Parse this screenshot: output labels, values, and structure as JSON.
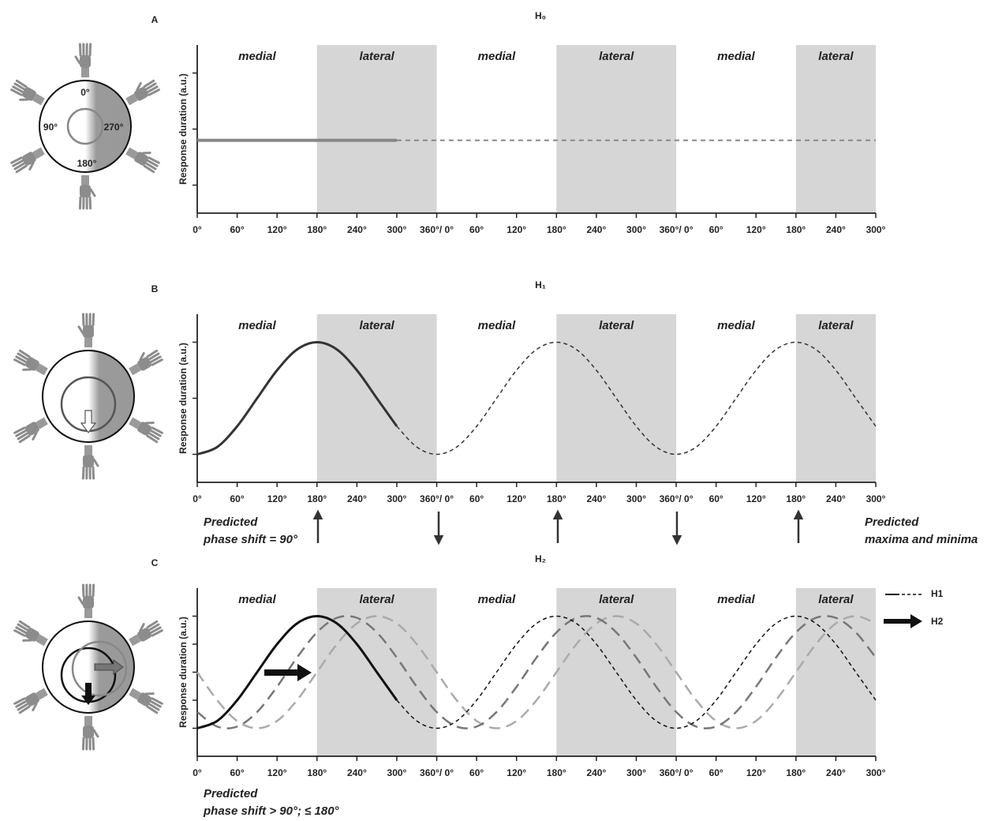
{
  "chart_data": [
    {
      "type": "line",
      "panel": "A",
      "title": "H₀",
      "y_label": "Response duration (a.u.)",
      "diagram_labels": [
        "0°",
        "90°",
        "270°",
        "180°"
      ],
      "xlim": [
        0,
        1020
      ],
      "ylim": [
        -0.5,
        2.5
      ],
      "yticks": [
        0,
        1,
        2
      ],
      "xticks": [
        {
          "value": 0,
          "label": "0°"
        },
        {
          "value": 60,
          "label": "60°"
        },
        {
          "value": 120,
          "label": "120°"
        },
        {
          "value": 180,
          "label": "180°"
        },
        {
          "value": 240,
          "label": "240°"
        },
        {
          "value": 300,
          "label": "300°"
        },
        {
          "value": 360,
          "label": "360°/ 0°"
        },
        {
          "value": 420,
          "label": "60°"
        },
        {
          "value": 480,
          "label": "120°"
        },
        {
          "value": 540,
          "label": "180°"
        },
        {
          "value": 600,
          "label": "240°"
        },
        {
          "value": 660,
          "label": "300°"
        },
        {
          "value": 720,
          "label": "360°/ 0°"
        },
        {
          "value": 780,
          "label": "60°"
        },
        {
          "value": 840,
          "label": "120°"
        },
        {
          "value": 900,
          "label": "180°"
        },
        {
          "value": 960,
          "label": "240°"
        },
        {
          "value": 1020,
          "label": "300°"
        }
      ],
      "bands": [
        {
          "label": "medial",
          "from": 0,
          "to": 180
        },
        {
          "label": "lateral",
          "from": 180,
          "to": 360,
          "shade": "#d6d6d6"
        },
        {
          "label": "medial",
          "from": 360,
          "to": 540
        },
        {
          "label": "lateral",
          "from": 540,
          "to": 720,
          "shade": "#d6d6d6"
        },
        {
          "label": "medial",
          "from": 720,
          "to": 900
        },
        {
          "label": "lateral",
          "from": 900,
          "to": 1020,
          "shade": "#d6d6d6"
        }
      ],
      "series": [
        {
          "color": "#888888",
          "width": 4,
          "x": [
            0,
            300
          ],
          "values": [
            0.8,
            0.8
          ]
        },
        {
          "color": "#888888",
          "width": 2,
          "dash": "6 5",
          "x": [
            300,
            1020
          ],
          "values": [
            0.8,
            0.8
          ]
        }
      ]
    },
    {
      "type": "line",
      "panel": "B",
      "title": "H₁",
      "y_label": "Response duration (a.u.)",
      "xlim": [
        0,
        1020
      ],
      "ylim": [
        -0.5,
        2.5
      ],
      "yticks": [
        0,
        1,
        2
      ],
      "xticks": [
        {
          "value": 0,
          "label": "0°"
        },
        {
          "value": 60,
          "label": "60°"
        },
        {
          "value": 120,
          "label": "120°"
        },
        {
          "value": 180,
          "label": "180°"
        },
        {
          "value": 240,
          "label": "240°"
        },
        {
          "value": 300,
          "label": "300°"
        },
        {
          "value": 360,
          "label": "360°/ 0°"
        },
        {
          "value": 420,
          "label": "60°"
        },
        {
          "value": 480,
          "label": "120°"
        },
        {
          "value": 540,
          "label": "180°"
        },
        {
          "value": 600,
          "label": "240°"
        },
        {
          "value": 660,
          "label": "300°"
        },
        {
          "value": 720,
          "label": "360°/ 0°"
        },
        {
          "value": 780,
          "label": "60°"
        },
        {
          "value": 840,
          "label": "120°"
        },
        {
          "value": 900,
          "label": "180°"
        },
        {
          "value": 960,
          "label": "240°"
        },
        {
          "value": 1020,
          "label": "300°"
        }
      ],
      "bands": [
        {
          "label": "medial",
          "from": 0,
          "to": 180
        },
        {
          "label": "lateral",
          "from": 180,
          "to": 360,
          "shade": "#d6d6d6"
        },
        {
          "label": "medial",
          "from": 360,
          "to": 540
        },
        {
          "label": "lateral",
          "from": 540,
          "to": 720,
          "shade": "#d6d6d6"
        },
        {
          "label": "medial",
          "from": 720,
          "to": 900
        },
        {
          "label": "lateral",
          "from": 900,
          "to": 1020,
          "shade": "#d6d6d6"
        }
      ],
      "annotations": [
        [
          "Predicted",
          "phase shift = 90°"
        ],
        [
          "Predicted",
          "maxima and minima"
        ]
      ],
      "series": [
        {
          "color": "#333333",
          "width": 3,
          "x": [
            0,
            30,
            60,
            90,
            120,
            150,
            180,
            210,
            240,
            270,
            300
          ],
          "values": [
            0,
            0.13,
            0.5,
            1,
            1.5,
            1.87,
            2,
            1.87,
            1.5,
            1,
            0.5
          ]
        },
        {
          "color": "#333333",
          "width": 1.5,
          "dash": "5 4",
          "x": [
            300,
            330,
            360,
            390,
            420,
            450,
            480,
            510,
            540,
            570,
            600,
            630,
            660,
            690,
            720,
            750,
            780,
            810,
            840,
            870,
            900,
            930,
            960,
            990,
            1020
          ],
          "values": [
            0.5,
            0.13,
            0,
            0.13,
            0.5,
            1,
            1.5,
            1.87,
            2,
            1.87,
            1.5,
            1,
            0.5,
            0.13,
            0,
            0.13,
            0.5,
            1,
            1.5,
            1.87,
            2,
            1.87,
            1.5,
            1,
            0.5
          ]
        }
      ]
    },
    {
      "type": "line",
      "panel": "C",
      "title": "H₂",
      "y_label": "Response duration (a.u.)",
      "xlim": [
        0,
        1020
      ],
      "ylim": [
        -0.5,
        2.5
      ],
      "yticks": [
        0,
        0.5,
        1,
        1.5,
        2
      ],
      "xticks": [
        {
          "value": 0,
          "label": "0°"
        },
        {
          "value": 60,
          "label": "60°"
        },
        {
          "value": 120,
          "label": "120°"
        },
        {
          "value": 180,
          "label": "180°"
        },
        {
          "value": 240,
          "label": "240°"
        },
        {
          "value": 300,
          "label": "300°"
        },
        {
          "value": 360,
          "label": "360°/ 0°"
        },
        {
          "value": 420,
          "label": "60°"
        },
        {
          "value": 480,
          "label": "120°"
        },
        {
          "value": 540,
          "label": "180°"
        },
        {
          "value": 600,
          "label": "240°"
        },
        {
          "value": 660,
          "label": "300°"
        },
        {
          "value": 720,
          "label": "360°/ 0°"
        },
        {
          "value": 780,
          "label": "60°"
        },
        {
          "value": 840,
          "label": "120°"
        },
        {
          "value": 900,
          "label": "180°"
        },
        {
          "value": 960,
          "label": "240°"
        },
        {
          "value": 1020,
          "label": "300°"
        }
      ],
      "bands": [
        {
          "label": "medial",
          "from": 0,
          "to": 180
        },
        {
          "label": "lateral",
          "from": 180,
          "to": 360,
          "shade": "#d6d6d6"
        },
        {
          "label": "medial",
          "from": 360,
          "to": 540
        },
        {
          "label": "lateral",
          "from": 540,
          "to": 720,
          "shade": "#d6d6d6"
        },
        {
          "label": "medial",
          "from": 720,
          "to": 900
        },
        {
          "label": "lateral",
          "from": 900,
          "to": 1020,
          "shade": "#d6d6d6"
        }
      ],
      "annotations": [
        [
          "Predicted",
          "phase shift > 90°; ≤ 180°"
        ]
      ],
      "legend": [
        "H1",
        "H2"
      ],
      "series": [
        {
          "color": "#aaaaaa",
          "width": 2.5,
          "dash": "14 8",
          "x": [
            0,
            30,
            60,
            90,
            120,
            150,
            180,
            210,
            240,
            270,
            300,
            330,
            360,
            390,
            420,
            450,
            480,
            510,
            540,
            570,
            600,
            630,
            660,
            690,
            720,
            750,
            780,
            810,
            840,
            870,
            900,
            930,
            960,
            990,
            1020
          ],
          "values": [
            1,
            0.5,
            0.13,
            0,
            0.13,
            0.5,
            1,
            1.5,
            1.87,
            2,
            1.87,
            1.5,
            1,
            0.5,
            0.13,
            0,
            0.13,
            0.5,
            1,
            1.5,
            1.87,
            2,
            1.87,
            1.5,
            1,
            0.5,
            0.13,
            0,
            0.13,
            0.5,
            1,
            1.5,
            1.87,
            2,
            1.87
          ]
        },
        {
          "color": "#777777",
          "width": 2.5,
          "dash": "14 8",
          "x": [
            0,
            30,
            60,
            90,
            120,
            150,
            180,
            210,
            240,
            270,
            300,
            330,
            360,
            390,
            420,
            450,
            480,
            510,
            540,
            570,
            600,
            630,
            660,
            690,
            720,
            750,
            780,
            810,
            840,
            870,
            900,
            930,
            960,
            990,
            1020
          ],
          "values": [
            0.29,
            0.03,
            0.03,
            0.29,
            0.74,
            1.26,
            1.71,
            1.97,
            1.97,
            1.71,
            1.26,
            0.74,
            0.29,
            0.03,
            0.03,
            0.29,
            0.74,
            1.26,
            1.71,
            1.97,
            1.97,
            1.71,
            1.26,
            0.74,
            0.29,
            0.03,
            0.03,
            0.29,
            0.74,
            1.26,
            1.71,
            1.97,
            1.97,
            1.71,
            1.26
          ]
        },
        {
          "color": "#111111",
          "width": 3,
          "x": [
            0,
            30,
            60,
            90,
            120,
            150,
            180,
            210,
            240,
            270,
            300
          ],
          "values": [
            0,
            0.13,
            0.5,
            1,
            1.5,
            1.87,
            2,
            1.87,
            1.5,
            1,
            0.5
          ]
        },
        {
          "color": "#111111",
          "width": 1.5,
          "dash": "5 4",
          "x": [
            300,
            330,
            360,
            390,
            420,
            450,
            480,
            510,
            540,
            570,
            600,
            630,
            660,
            690,
            720,
            750,
            780,
            810,
            840,
            870,
            900,
            930,
            960,
            990,
            1020
          ],
          "values": [
            0.5,
            0.13,
            0,
            0.13,
            0.5,
            1,
            1.5,
            1.87,
            2,
            1.87,
            1.5,
            1,
            0.5,
            0.13,
            0,
            0.13,
            0.5,
            1,
            1.5,
            1.87,
            2,
            1.87,
            1.5,
            1,
            0.5
          ]
        }
      ]
    }
  ]
}
